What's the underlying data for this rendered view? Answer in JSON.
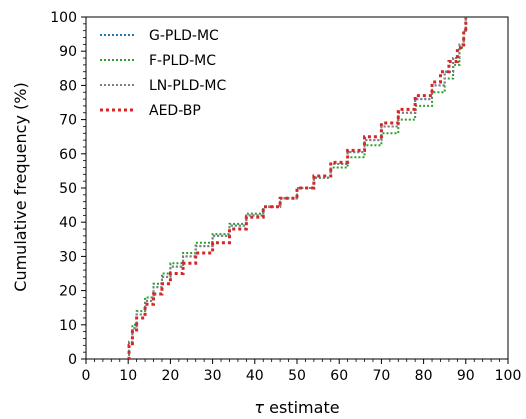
{
  "chart_data": {
    "type": "line",
    "xlabel_symbol": "τ",
    "xlabel_text": " estimate",
    "ylabel": "Cumulative frequency (%)",
    "xlim": [
      0,
      100
    ],
    "ylim": [
      0,
      100
    ],
    "xticks": [
      0,
      10,
      20,
      30,
      40,
      50,
      60,
      70,
      80,
      90,
      100
    ],
    "yticks": [
      0,
      10,
      20,
      30,
      40,
      50,
      60,
      70,
      80,
      90,
      100
    ],
    "grid": false,
    "legend_position": "top-left",
    "series": [
      {
        "name": "G-PLD-MC",
        "color": "#1f77b4",
        "points": [
          [
            10,
            0
          ],
          [
            10.2,
            5
          ],
          [
            11,
            9
          ],
          [
            12,
            13
          ],
          [
            14,
            17
          ],
          [
            16,
            21
          ],
          [
            18,
            24
          ],
          [
            20,
            27
          ],
          [
            23,
            30
          ],
          [
            26,
            33
          ],
          [
            30,
            36
          ],
          [
            34,
            39
          ],
          [
            38,
            42
          ],
          [
            42,
            44.5
          ],
          [
            46,
            47
          ],
          [
            50,
            50
          ],
          [
            54,
            53
          ],
          [
            58,
            57
          ],
          [
            62,
            60.5
          ],
          [
            66,
            64
          ],
          [
            70,
            68
          ],
          [
            74,
            72
          ],
          [
            78,
            76
          ],
          [
            82,
            80
          ],
          [
            85,
            84
          ],
          [
            87,
            88
          ],
          [
            88.5,
            92
          ],
          [
            89.5,
            96
          ],
          [
            90,
            100
          ]
        ]
      },
      {
        "name": "F-PLD-MC",
        "color": "#2ca02c",
        "points": [
          [
            10,
            0
          ],
          [
            10.2,
            5
          ],
          [
            11,
            10
          ],
          [
            12,
            14
          ],
          [
            14,
            18
          ],
          [
            16,
            22
          ],
          [
            18,
            25
          ],
          [
            20,
            28
          ],
          [
            23,
            31
          ],
          [
            26,
            34
          ],
          [
            30,
            36.5
          ],
          [
            34,
            39.5
          ],
          [
            38,
            42.5
          ],
          [
            42,
            44.5
          ],
          [
            46,
            47
          ],
          [
            50,
            50
          ],
          [
            54,
            53
          ],
          [
            58,
            56
          ],
          [
            62,
            59
          ],
          [
            66,
            62.5
          ],
          [
            70,
            66
          ],
          [
            74,
            70
          ],
          [
            78,
            74
          ],
          [
            82,
            78
          ],
          [
            85,
            82
          ],
          [
            87,
            86
          ],
          [
            88.5,
            91
          ],
          [
            89.5,
            96
          ],
          [
            90,
            100
          ]
        ]
      },
      {
        "name": "LN-PLD-MC",
        "color": "#7f7f7f",
        "points": [
          [
            10,
            0
          ],
          [
            10.2,
            5
          ],
          [
            11,
            9
          ],
          [
            12,
            13
          ],
          [
            14,
            17
          ],
          [
            16,
            21
          ],
          [
            18,
            24
          ],
          [
            20,
            27
          ],
          [
            23,
            30
          ],
          [
            26,
            33
          ],
          [
            30,
            36
          ],
          [
            34,
            39
          ],
          [
            38,
            42
          ],
          [
            42,
            44.5
          ],
          [
            46,
            47
          ],
          [
            50,
            50
          ],
          [
            54,
            53
          ],
          [
            58,
            57
          ],
          [
            62,
            60.5
          ],
          [
            66,
            64
          ],
          [
            70,
            68
          ],
          [
            74,
            72
          ],
          [
            78,
            76
          ],
          [
            82,
            80
          ],
          [
            85,
            84
          ],
          [
            87,
            88
          ],
          [
            88.5,
            92
          ],
          [
            89.5,
            96
          ],
          [
            90,
            100
          ]
        ]
      },
      {
        "name": "AED-BP",
        "color": "#d62728",
        "points": [
          [
            10,
            0
          ],
          [
            10.2,
            4
          ],
          [
            11,
            8
          ],
          [
            12,
            12
          ],
          [
            14,
            16
          ],
          [
            16,
            19
          ],
          [
            18,
            22
          ],
          [
            20,
            25
          ],
          [
            23,
            28
          ],
          [
            26,
            31
          ],
          [
            30,
            34
          ],
          [
            34,
            38
          ],
          [
            38,
            41.5
          ],
          [
            42,
            44.5
          ],
          [
            46,
            47
          ],
          [
            50,
            50
          ],
          [
            54,
            53.5
          ],
          [
            58,
            57.5
          ],
          [
            62,
            61
          ],
          [
            66,
            65
          ],
          [
            70,
            69
          ],
          [
            74,
            73
          ],
          [
            78,
            77
          ],
          [
            82,
            81
          ],
          [
            84,
            84
          ],
          [
            86,
            87
          ],
          [
            88,
            91
          ],
          [
            89.5,
            96
          ],
          [
            90,
            100
          ]
        ]
      }
    ]
  }
}
